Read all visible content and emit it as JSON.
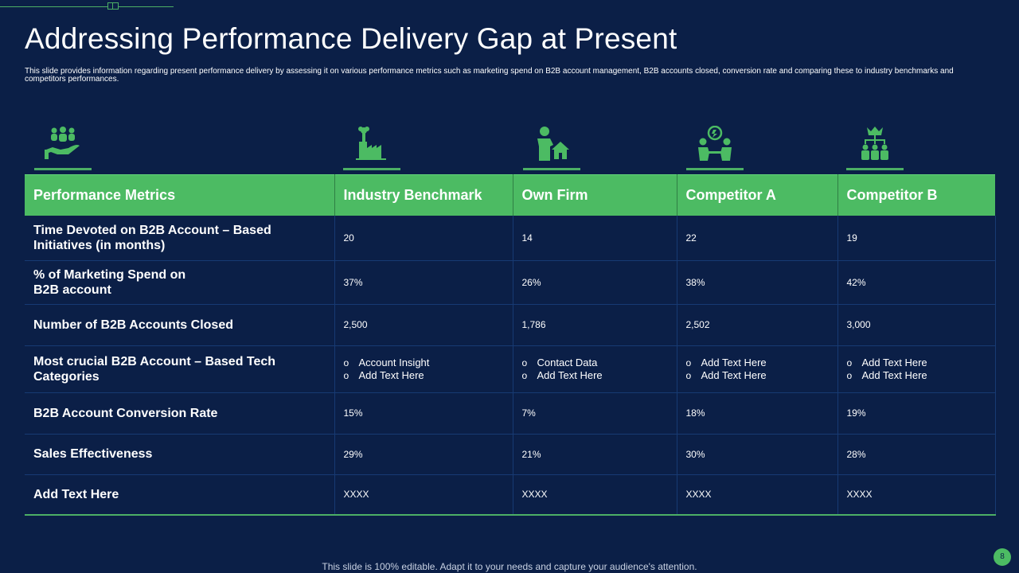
{
  "title": "Addressing Performance Delivery Gap at Present",
  "subtitle": "This slide provides information regarding present performance delivery by assessing it on various performance metrics such as marketing spend on B2B account management, B2B accounts closed, conversion rate and comparing these to industry benchmarks and competitors performances.",
  "icons": [
    "team-care-icon",
    "factory-icon",
    "person-house-icon",
    "meeting-idea-icon",
    "hierarchy-crown-icon"
  ],
  "table": {
    "headers": [
      "Performance Metrics",
      "Industry Benchmark",
      "Own Firm",
      "Competitor A",
      "Competitor B"
    ],
    "rows": [
      {
        "metric": "Time Devoted on B2B Account – Based Initiatives (in months)",
        "values": [
          "20",
          "14",
          "22",
          "19"
        ]
      },
      {
        "metric": "% of Marketing Spend on B2B account",
        "values": [
          "37%",
          "26%",
          "38%",
          "42%"
        ]
      },
      {
        "metric": "Number of B2B Accounts Closed",
        "values": [
          "2,500",
          "1,786",
          "2,502",
          "3,000"
        ]
      },
      {
        "metric": "Most crucial B2B Account – Based Tech Categories",
        "bullets": [
          [
            "Account Insight",
            "Add Text Here"
          ],
          [
            "Contact Data",
            "Add Text Here"
          ],
          [
            "Add Text Here",
            "Add Text Here"
          ],
          [
            "Add Text Here",
            "Add Text Here"
          ]
        ]
      },
      {
        "metric": "B2B Account Conversion Rate",
        "values": [
          "15%",
          "7%",
          "18%",
          "19%"
        ]
      },
      {
        "metric": "Sales Effectiveness",
        "values": [
          "29%",
          "21%",
          "30%",
          "28%"
        ]
      },
      {
        "metric": "Add Text Here",
        "values": [
          "XXXX",
          "XXXX",
          "XXXX",
          "XXXX"
        ]
      }
    ]
  },
  "footer": "This slide is 100% editable. Adapt it to your needs and capture your audience's attention.",
  "page_number": "8",
  "colors": {
    "background": "#0b1f47",
    "accent": "#4cbb63"
  }
}
